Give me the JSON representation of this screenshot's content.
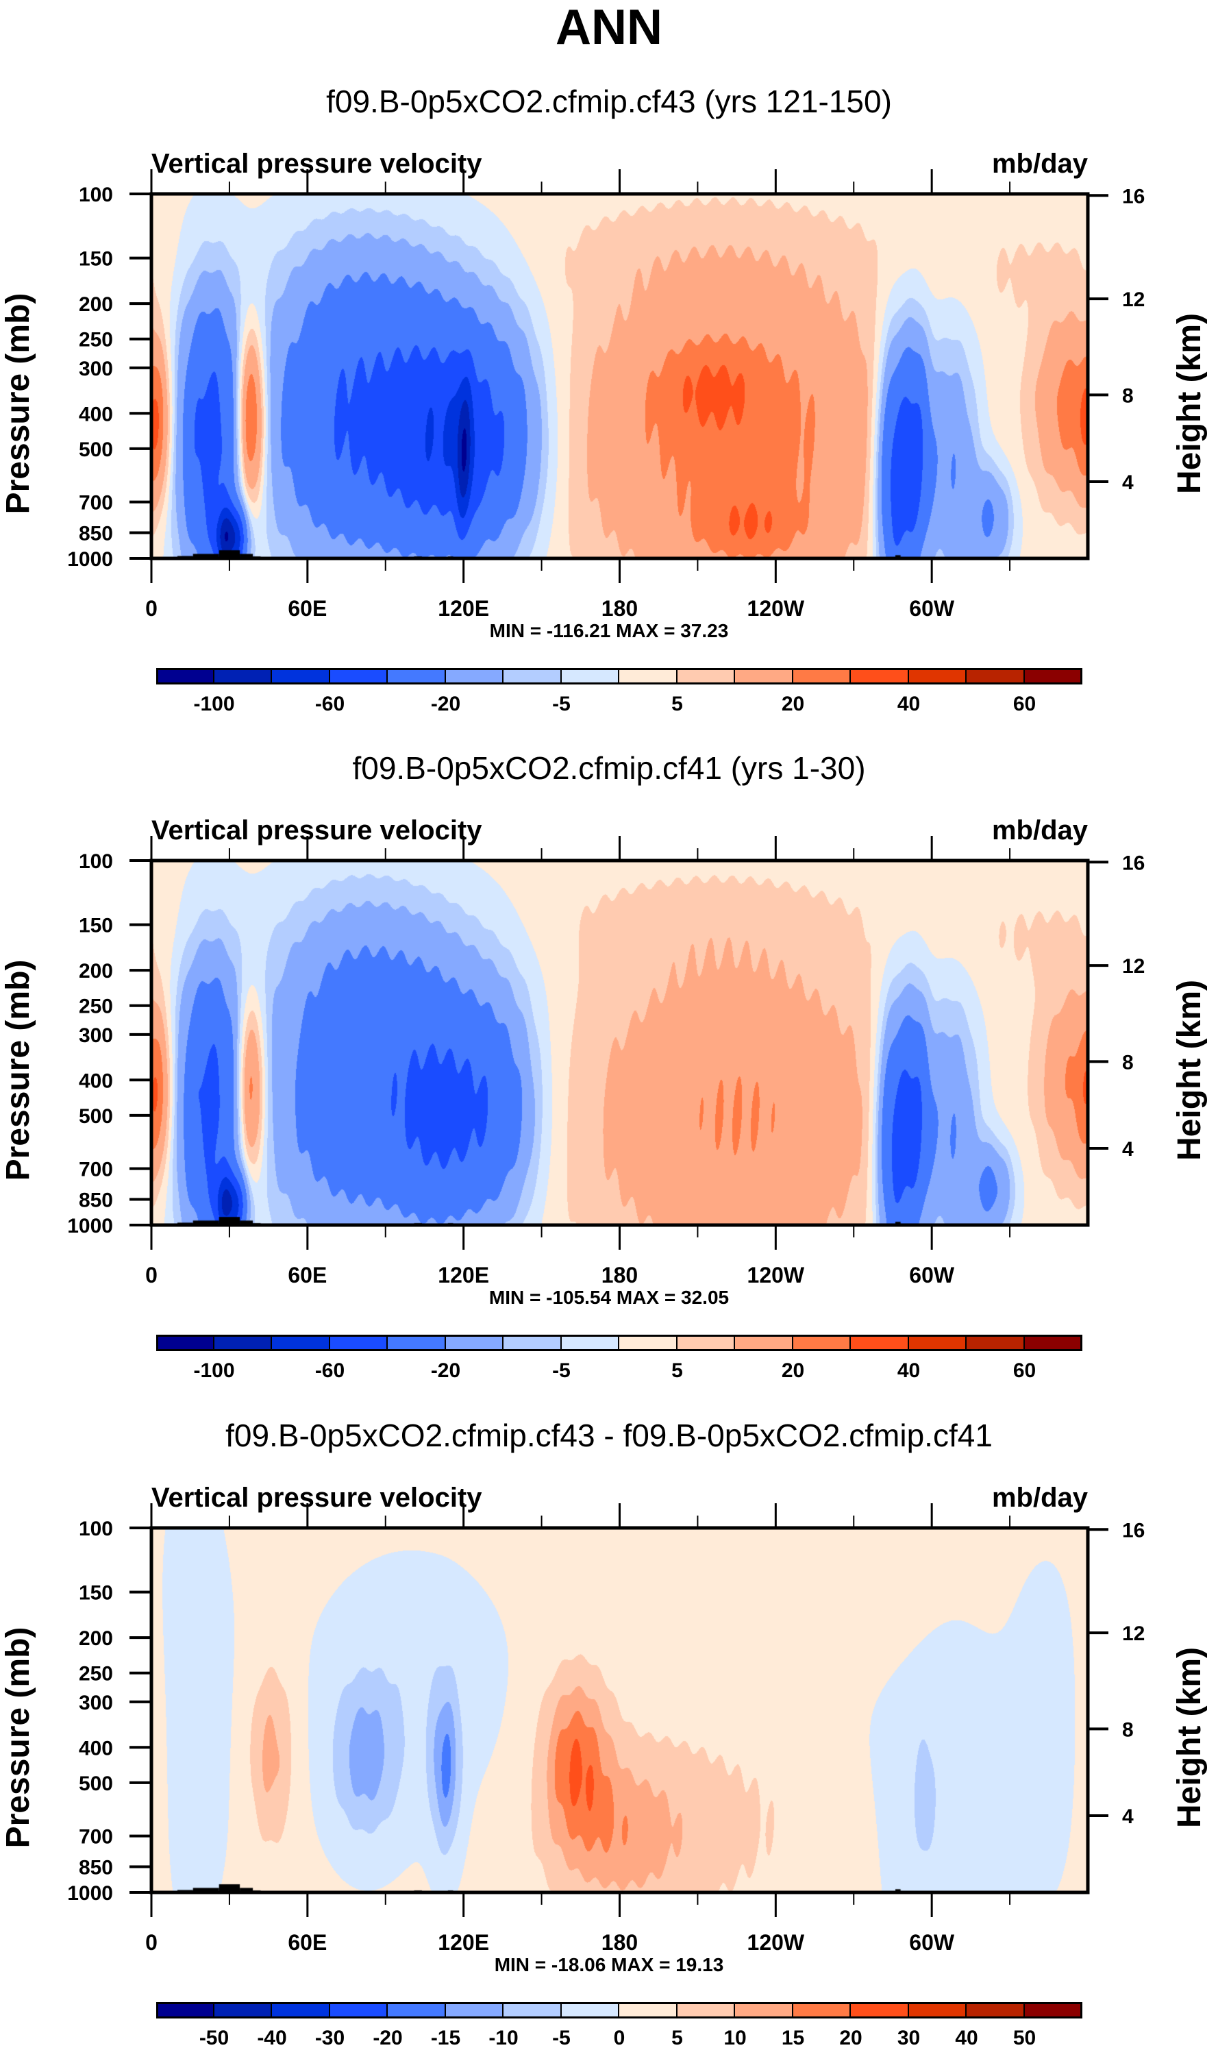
{
  "title": "ANN",
  "colors": [
    "#000090",
    "#0021b4",
    "#0033dd",
    "#1a4cff",
    "#4479ff",
    "#85a9ff",
    "#b3cdff",
    "#d6e8ff",
    "#ffebd8",
    "#ffcbb0",
    "#ffa984",
    "#ff7a45",
    "#ff4f1a",
    "#e03500",
    "#b82300",
    "#8b0000"
  ],
  "land_color": "#000000",
  "chart_data": [
    {
      "type": "heatmap",
      "title": "f09.B-0p5xCO2.cfmip.cf43 (yrs 121-150)",
      "left_label": "Vertical pressure velocity",
      "right_label": "mb/day",
      "xlabel": "",
      "ylabel": "Pressure (mb)",
      "y2label": "Height (km)",
      "x_ticks": [
        {
          "v": 0,
          "l": "0"
        },
        {
          "v": 60,
          "l": "60E"
        },
        {
          "v": 120,
          "l": "120E"
        },
        {
          "v": 180,
          "l": "180"
        },
        {
          "v": 240,
          "l": "120W"
        },
        {
          "v": 300,
          "l": "60W"
        }
      ],
      "x_minor_ticks": [
        30,
        90,
        150,
        210,
        270,
        330
      ],
      "xlim": [
        0,
        360
      ],
      "y_ticks": [
        100,
        150,
        200,
        250,
        300,
        400,
        500,
        700,
        850,
        1000
      ],
      "ylim": [
        100,
        1000
      ],
      "y_scale": "log",
      "y2_ticks": [
        {
          "km": 16,
          "p": 101
        },
        {
          "km": 12,
          "p": 194
        },
        {
          "km": 8,
          "p": 356
        },
        {
          "km": 4,
          "p": 616
        }
      ],
      "stats": "MIN = -116.21  MAX =  37.23",
      "min": -116.21,
      "max": 37.23,
      "levels": [
        -100,
        -80,
        -60,
        -40,
        -20,
        -10,
        -5,
        0,
        5,
        10,
        20,
        30,
        40,
        50,
        60
      ],
      "colorbar_labels": [
        "-100",
        "-60",
        "-20",
        "-5",
        "5",
        "20",
        "40",
        "60"
      ],
      "colorbar_label_levels": [
        -100,
        -60,
        -20,
        -5,
        5,
        20,
        40,
        60
      ],
      "background": 2,
      "features": [
        {
          "lon": 22,
          "p": 470,
          "wl": 9,
          "wp": 0.55,
          "amp": -48
        },
        {
          "lon": 30,
          "p": 880,
          "wl": 4,
          "wp": 0.12,
          "amp": -80
        },
        {
          "lon": 38,
          "p": 420,
          "wl": 4,
          "wp": 0.35,
          "amp": 45
        },
        {
          "lon": 2,
          "p": 450,
          "wl": 4,
          "wp": 0.3,
          "amp": 20
        },
        {
          "lon": 75,
          "p": 420,
          "wl": 22,
          "wp": 0.55,
          "amp": -42
        },
        {
          "lon": 108,
          "p": 470,
          "wl": 14,
          "wp": 0.45,
          "amp": -40
        },
        {
          "lon": 132,
          "p": 470,
          "wl": 14,
          "wp": 0.45,
          "amp": -38
        },
        {
          "lon": 120,
          "p": 520,
          "wl": 2.5,
          "wp": 0.3,
          "amp": -45
        },
        {
          "lon": 95,
          "p": 180,
          "wl": 30,
          "wp": 0.3,
          "amp": -8
        },
        {
          "lon": 225,
          "p": 460,
          "wl": 45,
          "wp": 0.6,
          "amp": 22
        },
        {
          "lon": 215,
          "p": 340,
          "wl": 14,
          "wp": 0.17,
          "amp": 12
        },
        {
          "lon": 230,
          "p": 820,
          "wl": 14,
          "wp": 0.13,
          "amp": 14
        },
        {
          "lon": 205,
          "p": 150,
          "wl": 50,
          "wp": 0.2,
          "amp": 3
        },
        {
          "lon": 286,
          "p": 600,
          "wl": 5,
          "wp": 0.5,
          "amp": -55
        },
        {
          "lon": 294,
          "p": 500,
          "wl": 4,
          "wp": 0.45,
          "amp": -38
        },
        {
          "lon": 307,
          "p": 540,
          "wl": 8,
          "wp": 0.5,
          "amp": -25
        },
        {
          "lon": 323,
          "p": 780,
          "wl": 6,
          "wp": 0.2,
          "amp": -22
        },
        {
          "lon": 353,
          "p": 380,
          "wl": 9,
          "wp": 0.32,
          "amp": 22
        },
        {
          "lon": 340,
          "p": 160,
          "wl": 25,
          "wp": 0.2,
          "amp": 3
        }
      ]
    },
    {
      "type": "heatmap",
      "title": "f09.B-0p5xCO2.cfmip.cf41 (yrs 1-30)",
      "left_label": "Vertical pressure velocity",
      "right_label": "mb/day",
      "xlabel": "",
      "ylabel": "Pressure (mb)",
      "y2label": "Height (km)",
      "x_ticks": [
        {
          "v": 0,
          "l": "0"
        },
        {
          "v": 60,
          "l": "60E"
        },
        {
          "v": 120,
          "l": "120E"
        },
        {
          "v": 180,
          "l": "180"
        },
        {
          "v": 240,
          "l": "120W"
        },
        {
          "v": 300,
          "l": "60W"
        }
      ],
      "x_minor_ticks": [
        30,
        90,
        150,
        210,
        270,
        330
      ],
      "xlim": [
        0,
        360
      ],
      "y_ticks": [
        100,
        150,
        200,
        250,
        300,
        400,
        500,
        700,
        850,
        1000
      ],
      "ylim": [
        100,
        1000
      ],
      "y_scale": "log",
      "y2_ticks": [
        {
          "km": 16,
          "p": 101
        },
        {
          "km": 12,
          "p": 194
        },
        {
          "km": 8,
          "p": 356
        },
        {
          "km": 4,
          "p": 616
        }
      ],
      "stats": "MIN = -105.54  MAX =  32.05",
      "min": -105.54,
      "max": 32.05,
      "levels": [
        -100,
        -80,
        -60,
        -40,
        -20,
        -10,
        -5,
        0,
        5,
        10,
        20,
        30,
        40,
        50,
        60
      ],
      "colorbar_labels": [
        "-100",
        "-60",
        "-20",
        "-5",
        "5",
        "20",
        "40",
        "60"
      ],
      "colorbar_label_levels": [
        -100,
        -60,
        -20,
        -5,
        5,
        20,
        40,
        60
      ],
      "background": 2,
      "features": [
        {
          "lon": 22,
          "p": 470,
          "wl": 9,
          "wp": 0.55,
          "amp": -46
        },
        {
          "lon": 30,
          "p": 880,
          "wl": 4,
          "wp": 0.12,
          "amp": -70
        },
        {
          "lon": 38,
          "p": 430,
          "wl": 4,
          "wp": 0.35,
          "amp": 36
        },
        {
          "lon": 2,
          "p": 450,
          "wl": 4,
          "wp": 0.3,
          "amp": 18
        },
        {
          "lon": 78,
          "p": 430,
          "wl": 24,
          "wp": 0.58,
          "amp": -36
        },
        {
          "lon": 110,
          "p": 500,
          "wl": 12,
          "wp": 0.45,
          "amp": -30
        },
        {
          "lon": 132,
          "p": 480,
          "wl": 12,
          "wp": 0.45,
          "amp": -32
        },
        {
          "lon": 95,
          "p": 180,
          "wl": 30,
          "wp": 0.3,
          "amp": -8
        },
        {
          "lon": 225,
          "p": 500,
          "wl": 42,
          "wp": 0.6,
          "amp": 18
        },
        {
          "lon": 205,
          "p": 150,
          "wl": 50,
          "wp": 0.2,
          "amp": 3
        },
        {
          "lon": 286,
          "p": 600,
          "wl": 5,
          "wp": 0.5,
          "amp": -50
        },
        {
          "lon": 294,
          "p": 500,
          "wl": 4,
          "wp": 0.45,
          "amp": -34
        },
        {
          "lon": 307,
          "p": 540,
          "wl": 8,
          "wp": 0.5,
          "amp": -24
        },
        {
          "lon": 323,
          "p": 800,
          "wl": 6,
          "wp": 0.18,
          "amp": -24
        },
        {
          "lon": 355,
          "p": 400,
          "wl": 9,
          "wp": 0.35,
          "amp": 18
        },
        {
          "lon": 340,
          "p": 160,
          "wl": 25,
          "wp": 0.2,
          "amp": 3
        }
      ]
    },
    {
      "type": "heatmap",
      "title": "f09.B-0p5xCO2.cfmip.cf43 - f09.B-0p5xCO2.cfmip.cf41",
      "left_label": "Vertical pressure velocity",
      "right_label": "mb/day",
      "xlabel": "",
      "ylabel": "Pressure (mb)",
      "y2label": "Height (km)",
      "x_ticks": [
        {
          "v": 0,
          "l": "0"
        },
        {
          "v": 60,
          "l": "60E"
        },
        {
          "v": 120,
          "l": "120E"
        },
        {
          "v": 180,
          "l": "180"
        },
        {
          "v": 240,
          "l": "120W"
        },
        {
          "v": 300,
          "l": "60W"
        }
      ],
      "x_minor_ticks": [
        30,
        90,
        150,
        210,
        270,
        330
      ],
      "xlim": [
        0,
        360
      ],
      "y_ticks": [
        100,
        150,
        200,
        250,
        300,
        400,
        500,
        700,
        850,
        1000
      ],
      "ylim": [
        100,
        1000
      ],
      "y_scale": "log",
      "y2_ticks": [
        {
          "km": 16,
          "p": 101
        },
        {
          "km": 12,
          "p": 194
        },
        {
          "km": 8,
          "p": 356
        },
        {
          "km": 4,
          "p": 616
        }
      ],
      "stats": "MIN = -18.06  MAX =  19.13",
      "min": -18.06,
      "max": 19.13,
      "levels": [
        -50,
        -40,
        -30,
        -20,
        -15,
        -10,
        -5,
        0,
        5,
        10,
        15,
        20,
        30,
        40,
        50
      ],
      "colorbar_labels": [
        "-50",
        "-40",
        "-30",
        "-20",
        "-15",
        "-10",
        "-5",
        "0",
        "5",
        "10",
        "15",
        "20",
        "30",
        "40",
        "50"
      ],
      "colorbar_label_levels": [
        -50,
        -40,
        -30,
        -20,
        -15,
        -10,
        -5,
        0,
        5,
        10,
        15,
        20,
        30,
        40,
        50
      ],
      "background": 1,
      "features": [
        {
          "lon": 15,
          "p": 300,
          "wl": 12,
          "wp": 0.9,
          "amp": -3
        },
        {
          "lon": 46,
          "p": 420,
          "wl": 6,
          "wp": 0.35,
          "amp": 11
        },
        {
          "lon": 82,
          "p": 430,
          "wl": 9,
          "wp": 0.3,
          "amp": -12
        },
        {
          "lon": 113,
          "p": 460,
          "wl": 4,
          "wp": 0.32,
          "amp": -15
        },
        {
          "lon": 100,
          "p": 300,
          "wl": 25,
          "wp": 0.5,
          "amp": -4
        },
        {
          "lon": 163,
          "p": 420,
          "wl": 9,
          "wp": 0.32,
          "amp": 16
        },
        {
          "lon": 180,
          "p": 700,
          "wl": 18,
          "wp": 0.3,
          "amp": 9
        },
        {
          "lon": 210,
          "p": 650,
          "wl": 40,
          "wp": 0.45,
          "amp": 5
        },
        {
          "lon": 255,
          "p": 180,
          "wl": 30,
          "wp": 0.25,
          "amp": 3
        },
        {
          "lon": 300,
          "p": 500,
          "wl": 20,
          "wp": 0.7,
          "amp": -4
        },
        {
          "lon": 297,
          "p": 560,
          "wl": 3,
          "wp": 0.25,
          "amp": -6
        },
        {
          "lon": 345,
          "p": 350,
          "wl": 10,
          "wp": 0.6,
          "amp": -3
        },
        {
          "lon": 360,
          "p": 350,
          "wl": 8,
          "wp": 0.6,
          "amp": 2
        }
      ]
    }
  ],
  "topography": [
    {
      "lon0": 10,
      "lon1": 16,
      "p": 985
    },
    {
      "lon0": 16,
      "lon1": 26,
      "p": 972
    },
    {
      "lon0": 26,
      "lon1": 34,
      "p": 950
    },
    {
      "lon0": 34,
      "lon1": 39,
      "p": 972
    },
    {
      "lon0": 39,
      "lon1": 42,
      "p": 988
    },
    {
      "lon0": 101,
      "lon1": 104,
      "p": 988
    },
    {
      "lon0": 114,
      "lon1": 116,
      "p": 988
    },
    {
      "lon0": 286,
      "lon1": 288,
      "p": 980
    },
    {
      "lon0": 288,
      "lon1": 307,
      "p": 992
    }
  ]
}
